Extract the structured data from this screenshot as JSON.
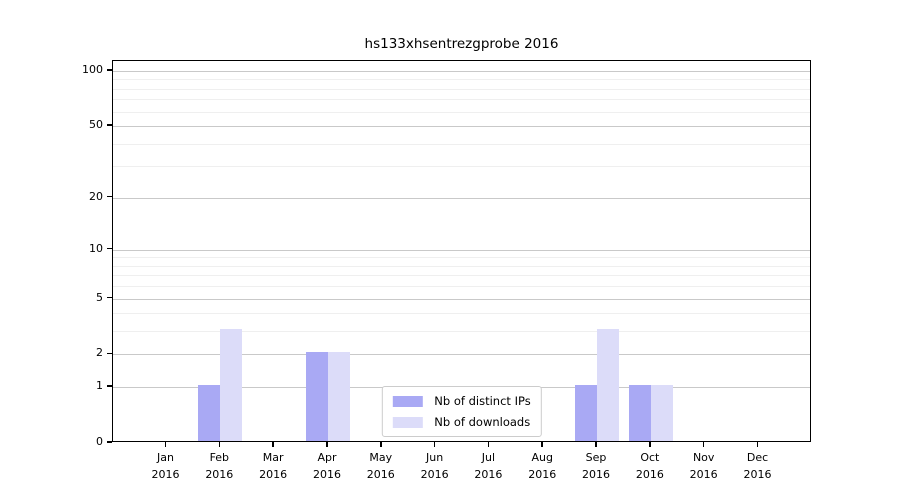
{
  "figure": {
    "title": "hs133xhsentrezgprobe 2016"
  },
  "chart_data": {
    "type": "bar",
    "title": "hs133xhsentrezgprobe 2016",
    "categories": [
      "Jan 2016",
      "Feb 2016",
      "Mar 2016",
      "Apr 2016",
      "May 2016",
      "Jun 2016",
      "Jul 2016",
      "Aug 2016",
      "Sep 2016",
      "Oct 2016",
      "Nov 2016",
      "Dec 2016"
    ],
    "months": [
      "Jan",
      "Feb",
      "Mar",
      "Apr",
      "May",
      "Jun",
      "Jul",
      "Aug",
      "Sep",
      "Oct",
      "Nov",
      "Dec"
    ],
    "year": "2016",
    "series": [
      {
        "name": "Nb of distinct IPs",
        "color": "#a9a9f4",
        "values": [
          0,
          1,
          0,
          2,
          0,
          0,
          0,
          0,
          1,
          1,
          0,
          0
        ]
      },
      {
        "name": "Nb of downloads",
        "color": "#dcdcf9",
        "values": [
          0,
          3,
          0,
          2,
          0,
          0,
          0,
          0,
          3,
          1,
          0,
          0
        ]
      }
    ],
    "y_axis": {
      "scale": "log10(1+y)",
      "major_ticks": [
        0,
        1,
        2,
        5,
        10,
        20,
        50,
        100
      ],
      "minor_gridlines": [
        3,
        4,
        6,
        7,
        8,
        9,
        30,
        40,
        60,
        70,
        80,
        90
      ],
      "range": [
        0,
        114
      ]
    },
    "grid": {
      "on": true,
      "major_color": "#c9c9c9",
      "minor_color": "#efefef"
    },
    "legend": {
      "position": "lower center"
    },
    "colors": {
      "axis": "#000000",
      "background": "#ffffff"
    }
  }
}
